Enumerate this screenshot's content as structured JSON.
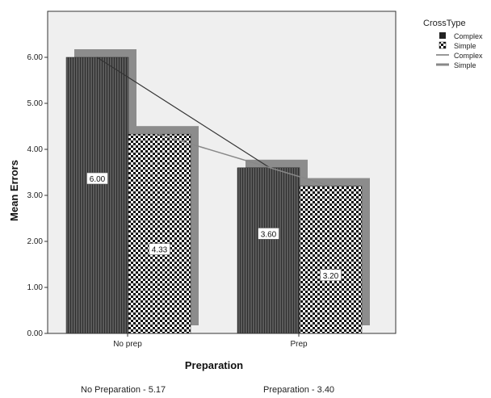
{
  "chart_data": {
    "type": "bar",
    "categories": [
      "No prep",
      "Prep"
    ],
    "series": [
      {
        "name": "Complex",
        "values": [
          6.0,
          3.6
        ],
        "data_labels": [
          "6.00",
          "3.60"
        ],
        "pattern": "dark-vertical"
      },
      {
        "name": "Simple",
        "values": [
          4.33,
          3.2
        ],
        "data_labels": [
          "4.33",
          "3.20"
        ],
        "pattern": "checker"
      }
    ],
    "lines": [
      {
        "name": "Complex",
        "values": [
          6.0,
          3.6
        ],
        "color": "#333333"
      },
      {
        "name": "Simple",
        "values": [
          4.33,
          3.2
        ],
        "color": "#888888"
      }
    ],
    "xlabel": "Preparation",
    "ylabel": "Mean Errors",
    "ylim": [
      0,
      7
    ],
    "yticks": [
      "0.00",
      "1.00",
      "2.00",
      "3.00",
      "4.00",
      "5.00",
      "6.00"
    ],
    "legend": {
      "title": "CrossType",
      "placement": "top-right",
      "items": [
        "Complex",
        "Simple",
        "Complex",
        "Simple"
      ]
    },
    "footer_notes": [
      "No Preparation - 5.17",
      "Preparation - 3.40"
    ],
    "colors": {
      "plot_bg": "#efefef",
      "shadow": "#8c8c8c",
      "bar_dark": "#4a4a4a"
    }
  }
}
